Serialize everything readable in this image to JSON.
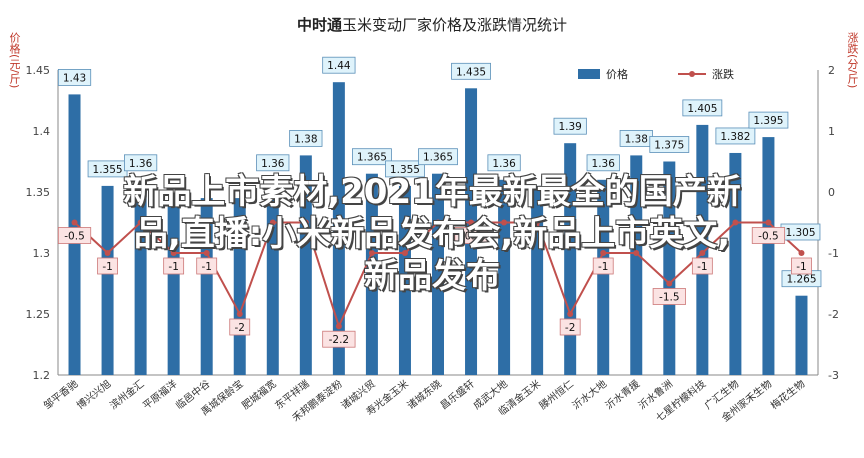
{
  "title_prefix": "中时通",
  "title_rest": "玉米变动厂家价格及涨跌情况统计",
  "overlay_text_1": "新品上市素材,2021年最新最全的国产新",
  "overlay_text_2": "品,直播:小米新品发布会,新品上市英文,",
  "overlay_text_3": "新品发布",
  "left_unit": "价格(元/斤)",
  "right_unit": "涨跌(分/斤)",
  "colors": {
    "bar": "#2e6ea6",
    "line": "#c0504d",
    "bar_label_bg": "#dff3fb",
    "line_label_bg": "#fbe3e3"
  },
  "chart_data": {
    "type": "bar",
    "categories": [
      "邹平香驰",
      "博兴兴旭",
      "滨州金汇",
      "平原福洋",
      "临邑中谷",
      "禹城保龄宝",
      "肥城福宽",
      "东平祥瑞",
      "禾邦鹏泰淀粉",
      "诸城兴贸",
      "寿光金玉米",
      "诸城东晓",
      "昌乐盛轩",
      "成武大地",
      "临清金玉米",
      "滕州恒仁",
      "沂水大地",
      "沂水青援",
      "沂水鲁洲",
      "七星柠檬科技",
      "广汇生物",
      "金州家禾生物",
      "梅花生物"
    ],
    "series": [
      {
        "name": "价格",
        "axis": "left",
        "values": [
          1.43,
          1.355,
          1.36,
          1.34,
          1.345,
          1.345,
          1.36,
          1.38,
          1.44,
          1.365,
          1.355,
          1.365,
          1.435,
          1.36,
          1.355,
          1.39,
          1.36,
          1.38,
          1.375,
          1.405,
          1.382,
          1.395,
          1.265
        ],
        "value_labels": [
          "1.43",
          "1.355",
          "1.36",
          "",
          "",
          "",
          "1.36",
          "1.38",
          "1.44",
          "1.365",
          "1.355",
          "1.365",
          "1.435",
          "1.36",
          "",
          "1.39",
          "1.36",
          "1.38",
          "1.375",
          "1.405",
          "1.382",
          "1.395",
          "1.265"
        ]
      },
      {
        "name": "涨跌",
        "axis": "right",
        "values": [
          -0.5,
          -1,
          -0.5,
          -1,
          -1,
          -2,
          -0.5,
          -0.5,
          -2.2,
          -1,
          -1,
          -0.5,
          -0.5,
          -0.5,
          -0.5,
          -2,
          -1,
          -1,
          -1.5,
          -1,
          -0.5,
          -0.5,
          -1
        ],
        "value_labels": [
          "-0.5",
          "-1",
          "",
          "-1",
          "-1",
          "-2",
          "",
          "",
          "-2.2",
          "",
          "",
          "",
          "-0.5",
          "",
          "",
          "-2",
          "-1",
          "",
          "-1.5",
          "-1",
          "",
          "-0.5",
          "-1"
        ]
      }
    ],
    "extra_bar_labels": [
      "1.305"
    ],
    "left_axis": {
      "ylim": [
        1.2,
        1.45
      ],
      "ticks": [
        "1.2",
        "1.25",
        "1.3",
        "1.35",
        "1.4",
        "1.45"
      ]
    },
    "right_axis": {
      "ylim": [
        -3,
        2
      ],
      "ticks": [
        "-3",
        "-2",
        "-1",
        "0",
        "1",
        "2"
      ]
    },
    "legend": [
      "价格",
      "涨跌"
    ],
    "legend_position": "top-right",
    "grid": false
  }
}
